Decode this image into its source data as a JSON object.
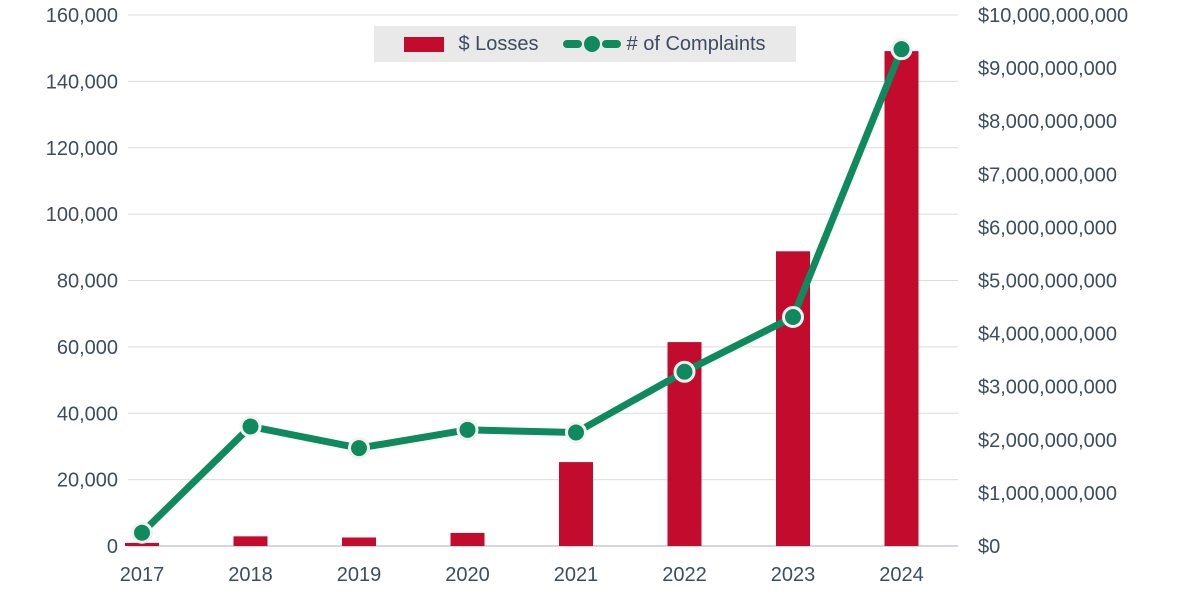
{
  "chart_data": {
    "type": "bar",
    "subtype": "combo-bar-line-dual-axis",
    "title": "",
    "categories": [
      "2017",
      "2018",
      "2019",
      "2020",
      "2021",
      "2022",
      "2023",
      "2024"
    ],
    "series": [
      {
        "name": "$ Losses",
        "type": "bar",
        "axis": "right",
        "color": "#c30b2e",
        "values": [
          58000000,
          182000000,
          160000000,
          246000000,
          1580000000,
          3840000000,
          5550000000,
          9320000000
        ]
      },
      {
        "name": "# of Complaints",
        "type": "line",
        "axis": "left",
        "color": "#0f8a5e",
        "marker_stroke": "#f2f2f2",
        "values": [
          4000,
          36000,
          29500,
          35000,
          34200,
          52500,
          69000,
          149700
        ]
      }
    ],
    "left_axis": {
      "min": 0,
      "max": 160000,
      "step": 20000,
      "tick_labels": [
        "0",
        "20,000",
        "40,000",
        "60,000",
        "80,000",
        "100,000",
        "120,000",
        "140,000",
        "160,000"
      ]
    },
    "right_axis": {
      "min": 0,
      "max": 10000000000,
      "step": 1000000000,
      "tick_labels": [
        "$0",
        "$1,000,000,000",
        "$2,000,000,000",
        "$3,000,000,000",
        "$4,000,000,000",
        "$5,000,000,000",
        "$6,000,000,000",
        "$7,000,000,000",
        "$8,000,000,000",
        "$9,000,000,000",
        "$10,000,000,000"
      ]
    },
    "grid": true,
    "gridline_color": "#dcdcdc",
    "axis_line_color": "#c6cacf",
    "tick_label_color": "#3e4c61",
    "legend": {
      "position": "top-center",
      "background": "#e9e9e9",
      "items": [
        "$ Losses",
        "# of Complaints"
      ]
    }
  }
}
